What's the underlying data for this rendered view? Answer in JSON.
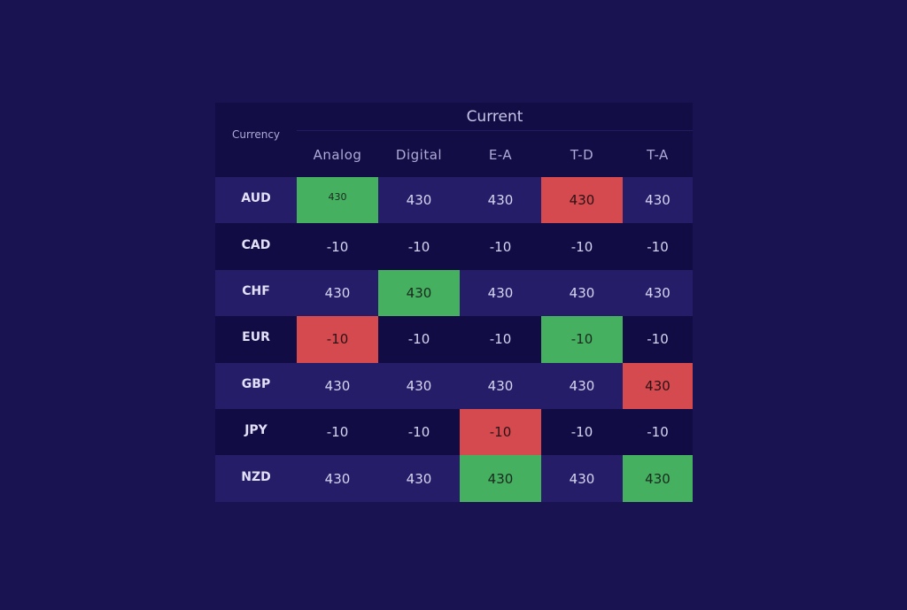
{
  "table": {
    "corner_label": "Currency",
    "group_label": "Current",
    "columns": [
      "Analog",
      "Digital",
      "E-A",
      "T-D",
      "T-A"
    ],
    "rows": [
      {
        "currency": "AUD",
        "values": [
          "430",
          "430",
          "430",
          "430",
          "430"
        ],
        "status": [
          "good",
          "",
          "",
          "bad",
          ""
        ]
      },
      {
        "currency": "CAD",
        "values": [
          "-10",
          "-10",
          "-10",
          "-10",
          "-10"
        ],
        "status": [
          "",
          "",
          "",
          "",
          ""
        ]
      },
      {
        "currency": "CHF",
        "values": [
          "430",
          "430",
          "430",
          "430",
          "430"
        ],
        "status": [
          "",
          "good",
          "",
          "",
          ""
        ]
      },
      {
        "currency": "EUR",
        "values": [
          "-10",
          "-10",
          "-10",
          "-10",
          "-10"
        ],
        "status": [
          "bad",
          "",
          "",
          "good",
          ""
        ]
      },
      {
        "currency": "GBP",
        "values": [
          "430",
          "430",
          "430",
          "430",
          "430"
        ],
        "status": [
          "",
          "",
          "",
          "",
          "bad"
        ]
      },
      {
        "currency": "JPY",
        "values": [
          "-10",
          "-10",
          "-10",
          "-10",
          "-10"
        ],
        "status": [
          "",
          "",
          "bad",
          "",
          ""
        ]
      },
      {
        "currency": "NZD",
        "values": [
          "430",
          "430",
          "430",
          "430",
          "430"
        ],
        "status": [
          "",
          "",
          "good",
          "",
          "good"
        ]
      }
    ]
  },
  "colors": {
    "background": "#1a1352",
    "header": "#130d45",
    "row_light": "#251d68",
    "row_dark": "#120c45",
    "positive": "#45b060",
    "negative": "#d54a4e"
  }
}
